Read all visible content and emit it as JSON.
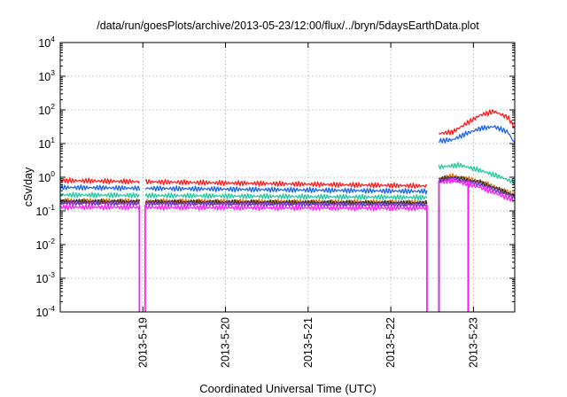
{
  "chart_data": {
    "type": "line",
    "title": "/data/run/goesPlots/archive/2013-05-23/12:00/flux/../bryn/5daysEarthData.plot",
    "xlabel": "Coordinated Universal Time (UTC)",
    "ylabel": "cSv/day",
    "yscale": "log",
    "ylim": [
      0.0001,
      10000
    ],
    "y_ticks": [
      {
        "value": 0.0001,
        "base": "10",
        "exp": "-4"
      },
      {
        "value": 0.001,
        "base": "10",
        "exp": "-3"
      },
      {
        "value": 0.01,
        "base": "10",
        "exp": "-2"
      },
      {
        "value": 0.1,
        "base": "10",
        "exp": "-1"
      },
      {
        "value": 1,
        "base": "10",
        "exp": "0"
      },
      {
        "value": 10,
        "base": "10",
        "exp": "1"
      },
      {
        "value": 100,
        "base": "10",
        "exp": "2"
      },
      {
        "value": 1000,
        "base": "10",
        "exp": "3"
      },
      {
        "value": 10000,
        "base": "10",
        "exp": "4"
      }
    ],
    "xlim": [
      "2013-05-18 00:00",
      "2013-05-23 12:00"
    ],
    "x_ticks": [
      "2013-5-19",
      "2013-5-20",
      "2013-5-21",
      "2013-5-22",
      "2013-5-23"
    ],
    "grid": true,
    "legend": "none",
    "gaps": [
      {
        "from": "2013-05-18 23:00",
        "to": "2013-05-19 00:40"
      },
      {
        "from": "2013-05-22 10:30",
        "to": "2013-05-22 14:00"
      }
    ],
    "dropouts": [
      {
        "at": "2013-05-22 14:00",
        "from_series": 3
      },
      {
        "at": "2013-05-22 22:30",
        "from_series": 1
      }
    ],
    "series": [
      {
        "color": "#ff1a1a",
        "values": [
          {
            "x": "2013-05-18 00:00",
            "y": 0.8
          },
          {
            "x": "2013-05-22 10:30",
            "y": 0.55
          },
          {
            "x": "2013-05-22 14:00",
            "y": 20
          },
          {
            "x": "2013-05-22 18:00",
            "y": 22
          },
          {
            "x": "2013-05-22 22:00",
            "y": 40
          },
          {
            "x": "2013-05-23 02:00",
            "y": 70
          },
          {
            "x": "2013-05-23 06:00",
            "y": 90
          },
          {
            "x": "2013-05-23 10:00",
            "y": 60
          },
          {
            "x": "2013-05-23 12:00",
            "y": 30
          }
        ]
      },
      {
        "color": "#1a66e6",
        "values": [
          {
            "x": "2013-05-18 00:00",
            "y": 0.5
          },
          {
            "x": "2013-05-22 10:30",
            "y": 0.38
          },
          {
            "x": "2013-05-22 14:00",
            "y": 12
          },
          {
            "x": "2013-05-22 18:00",
            "y": 13
          },
          {
            "x": "2013-05-22 22:00",
            "y": 20
          },
          {
            "x": "2013-05-23 02:00",
            "y": 28
          },
          {
            "x": "2013-05-23 06:00",
            "y": 32
          },
          {
            "x": "2013-05-23 10:00",
            "y": 22
          },
          {
            "x": "2013-05-23 12:00",
            "y": 10
          }
        ]
      },
      {
        "color": "#20c8a0",
        "values": [
          {
            "x": "2013-05-18 00:00",
            "y": 0.3
          },
          {
            "x": "2013-05-22 10:30",
            "y": 0.25
          },
          {
            "x": "2013-05-22 14:00",
            "y": 2.0
          },
          {
            "x": "2013-05-22 20:00",
            "y": 2.3
          },
          {
            "x": "2013-05-23 02:00",
            "y": 1.6
          },
          {
            "x": "2013-05-23 08:00",
            "y": 1.0
          },
          {
            "x": "2013-05-23 12:00",
            "y": 0.7
          }
        ]
      },
      {
        "color": "#e07800",
        "values": [
          {
            "x": "2013-05-18 00:00",
            "y": 0.2
          },
          {
            "x": "2013-05-22 10:30",
            "y": 0.18
          },
          {
            "x": "2013-05-22 14:00",
            "y": 0.9
          },
          {
            "x": "2013-05-22 18:00",
            "y": 1.1
          },
          {
            "x": "2013-05-23 02:00",
            "y": 0.75
          },
          {
            "x": "2013-05-23 12:00",
            "y": 0.3
          }
        ]
      },
      {
        "color": "#303030",
        "values": [
          {
            "x": "2013-05-18 00:00",
            "y": 0.19
          },
          {
            "x": "2013-05-22 10:30",
            "y": 0.17
          },
          {
            "x": "2013-05-22 14:00",
            "y": 0.85
          },
          {
            "x": "2013-05-22 18:00",
            "y": 1.0
          },
          {
            "x": "2013-05-23 02:00",
            "y": 0.7
          },
          {
            "x": "2013-05-23 12:00",
            "y": 0.28
          }
        ]
      },
      {
        "color": "#7a2fd0",
        "values": [
          {
            "x": "2013-05-18 00:00",
            "y": 0.17
          },
          {
            "x": "2013-05-22 10:30",
            "y": 0.15
          },
          {
            "x": "2013-05-22 14:00",
            "y": 0.8
          },
          {
            "x": "2013-05-22 18:00",
            "y": 0.9
          },
          {
            "x": "2013-05-23 02:00",
            "y": 0.6
          },
          {
            "x": "2013-05-23 12:00",
            "y": 0.25
          }
        ]
      },
      {
        "color": "#ff1aff",
        "values": [
          {
            "x": "2013-05-18 00:00",
            "y": 0.13
          },
          {
            "x": "2013-05-22 10:30",
            "y": 0.12
          },
          {
            "x": "2013-05-22 14:00",
            "y": 0.7
          },
          {
            "x": "2013-05-22 18:00",
            "y": 0.8
          },
          {
            "x": "2013-05-23 02:00",
            "y": 0.5
          },
          {
            "x": "2013-05-23 12:00",
            "y": 0.2
          }
        ]
      }
    ]
  }
}
